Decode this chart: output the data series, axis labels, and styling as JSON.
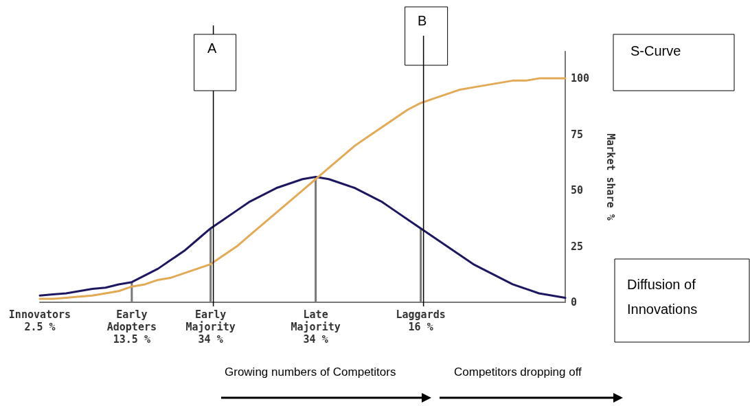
{
  "chart_data": {
    "type": "line",
    "ylabel": "Market share %",
    "categories": [
      "Innovators\n2.5 %",
      null,
      null,
      null,
      null,
      null,
      null,
      "Early\nAdopters\n13.5 %",
      null,
      null,
      null,
      null,
      null,
      "Early\nMajority\n34 %",
      null,
      null,
      null,
      null,
      null,
      null,
      null,
      "Late\nMajority\n34 %",
      null,
      null,
      null,
      null,
      null,
      null,
      null,
      "Laggards\n16 %",
      null,
      null,
      null,
      null,
      null,
      null,
      null,
      null,
      null,
      null,
      null
    ],
    "series": [
      {
        "color": "#1c1760",
        "values": [
          3,
          3.5,
          4,
          5,
          6,
          6.5,
          8,
          9,
          12,
          15,
          19,
          23,
          28,
          33,
          37,
          41,
          45,
          48,
          51,
          53,
          55,
          56,
          55,
          53,
          51,
          48,
          45,
          41,
          37,
          33,
          29,
          25,
          21,
          17,
          14,
          11,
          8,
          6,
          4,
          3,
          2
        ]
      },
      {
        "color": "#e2aa55",
        "values": [
          1.5,
          1.5,
          2,
          2.5,
          3,
          4,
          5,
          7,
          8,
          10,
          11,
          13,
          15,
          17,
          21,
          25,
          30,
          35,
          40,
          45,
          50,
          55,
          60,
          65,
          70,
          74,
          78,
          82,
          86,
          89,
          91,
          93,
          95,
          96,
          97,
          98,
          99,
          99,
          100,
          100,
          100
        ]
      },
      {
        "type": "bar",
        "color": "#777777",
        "values": [
          null,
          null,
          null,
          null,
          null,
          null,
          null,
          9,
          null,
          null,
          null,
          null,
          null,
          33,
          null,
          null,
          null,
          null,
          null,
          null,
          null,
          56,
          null,
          null,
          null,
          null,
          null,
          null,
          null,
          33,
          null,
          null,
          null,
          null,
          null,
          null,
          null,
          null,
          null,
          null,
          null
        ]
      }
    ],
    "ylim": [
      0,
      112
    ],
    "yticks": [
      0,
      25,
      50,
      75,
      100
    ],
    "grid": false,
    "marker": "none",
    "line_style": "solid",
    "ref_lines": [
      {
        "axis": "x",
        "value": "Early\nMajority\n34 %",
        "label": "A",
        "color": "#000000"
      },
      {
        "axis": "x",
        "value": "Laggards\n16 %",
        "label": "B",
        "color": "#000000"
      }
    ],
    "annotations": [
      "S-Curve",
      "Diffusion of\nInnovations",
      "Growing numbers of Competitors",
      "Competitors dropping off"
    ]
  }
}
